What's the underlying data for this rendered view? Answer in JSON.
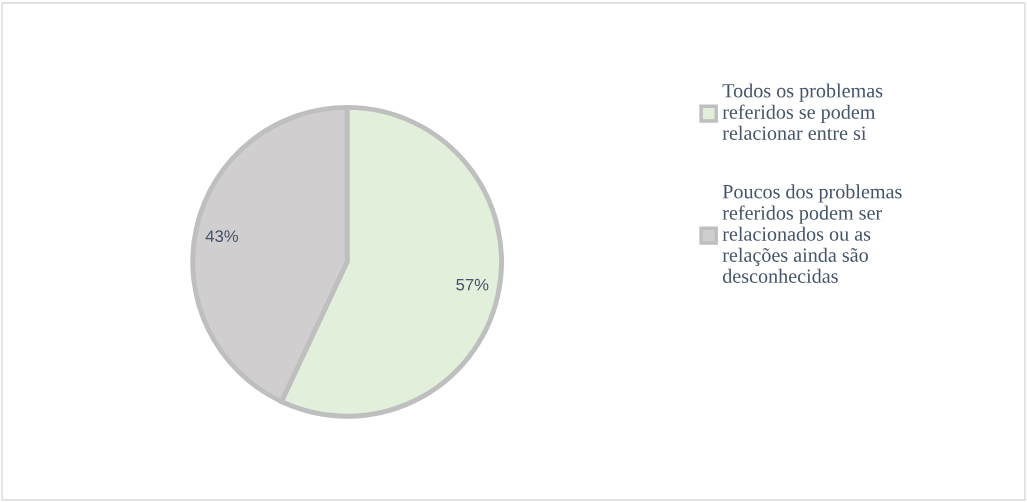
{
  "chart_data": {
    "type": "pie",
    "categories": [
      "Todos os problemas referidos se podem relacionar entre si",
      "Poucos dos problemas referidos podem ser relacionados ou as relações ainda são desconhecidas"
    ],
    "values": [
      57,
      43
    ],
    "colors": [
      "#e2efda",
      "#d0cece"
    ],
    "value_labels": [
      "57%",
      "43%"
    ],
    "legend": "right"
  }
}
